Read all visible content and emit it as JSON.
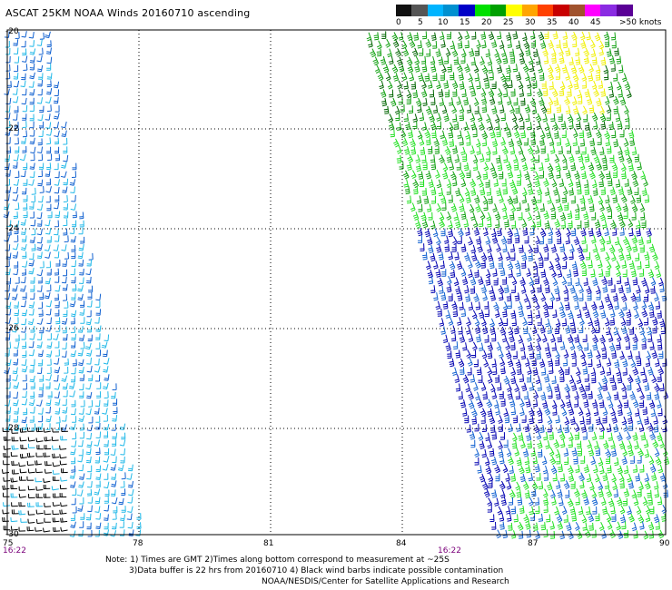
{
  "title": "ASCAT 25KM NOAA Winds 20160710 ascending",
  "legend": {
    "labels": [
      "0",
      "5",
      "10",
      "15",
      "20",
      "25",
      "30",
      "35",
      "40",
      "45",
      ">50 knots"
    ],
    "colors": [
      "#111111",
      "#555555",
      "#00b4ff",
      "#0090d0",
      "#0000c8",
      "#00e000",
      "#00a000",
      "#ffff00",
      "#ffa500",
      "#ff4000",
      "#c80000",
      "#a0522d",
      "#ff00ff",
      "#8a2be2",
      "#5a0096"
    ]
  },
  "map": {
    "lon_ticks": [
      "75",
      "78",
      "81",
      "84",
      "87",
      "90"
    ],
    "lat_ticks": [
      "-20",
      "-22",
      "-24",
      "-26",
      "-28",
      "-30"
    ],
    "pass_times": [
      "16:22",
      "16:22"
    ]
  },
  "notes": {
    "line1": "Note: 1) Times are GMT 2)Times along bottom correspond to measurement at ~25S",
    "line2": "3)Data buffer is 22 hrs from 20160710 4) Black wind barbs indicate possible contamination",
    "line3": "NOAA/NESDIS/Center for Satellite Applications and Research"
  },
  "colors": {
    "grid": "#000000",
    "calm": "#000000",
    "light": "#20b8e8",
    "moderate_blue": "#1060d0",
    "strong_blue": "#0000b0",
    "light_green": "#20e020",
    "green": "#10a010",
    "dark_green": "#006400",
    "yellow": "#f0f000",
    "time_label": "#7a007a"
  }
}
